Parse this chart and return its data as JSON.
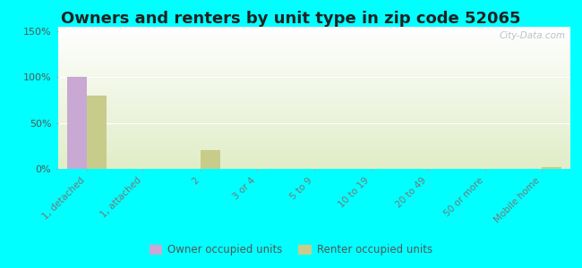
{
  "title": "Owners and renters by unit type in zip code 52065",
  "categories": [
    "1, detached",
    "1, attached",
    "2",
    "3 or 4",
    "5 to 9",
    "10 to 19",
    "20 to 49",
    "50 or more",
    "Mobile home"
  ],
  "owner_values": [
    100,
    0,
    0,
    0,
    0,
    0,
    0,
    0,
    0
  ],
  "renter_values": [
    80,
    0,
    20,
    0,
    0,
    0,
    0,
    0,
    2
  ],
  "owner_color": "#c9a8d4",
  "renter_color": "#c8cc8a",
  "yticks": [
    0,
    50,
    100,
    150
  ],
  "ytick_labels": [
    "0%",
    "50%",
    "100%",
    "150%"
  ],
  "ylim": [
    0,
    155
  ],
  "outer_background": "#00ffff",
  "title_fontsize": 13,
  "watermark": "City-Data.com",
  "legend_labels": [
    "Owner occupied units",
    "Renter occupied units"
  ]
}
